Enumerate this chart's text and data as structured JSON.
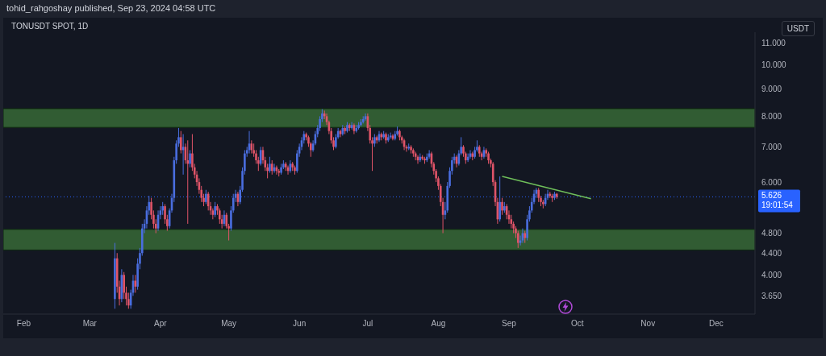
{
  "chart_data": {
    "type": "candlestick",
    "title": "tohid_rahgoshay published, Sep 23, 2024 04:58 UTC",
    "subtitle": "TONUSDT SPOT, 1D",
    "ylabel": "USDT",
    "log": "y",
    "xlim": [
      "2024-01-23",
      "2024-12-18"
    ],
    "xticks": [
      {
        "value": "2024-02-01",
        "label": "Feb"
      },
      {
        "value": "2024-03-01",
        "label": "Mar"
      },
      {
        "value": "2024-04-01",
        "label": "Apr"
      },
      {
        "value": "2024-05-01",
        "label": "May"
      },
      {
        "value": "2024-06-01",
        "label": "Jun"
      },
      {
        "value": "2024-07-01",
        "label": "Jul"
      },
      {
        "value": "2024-08-01",
        "label": "Aug"
      },
      {
        "value": "2024-09-01",
        "label": "Sep"
      },
      {
        "value": "2024-10-01",
        "label": "Oct"
      },
      {
        "value": "2024-11-01",
        "label": "Nov"
      },
      {
        "value": "2024-12-01",
        "label": "Dec"
      }
    ],
    "ylim": [
      3.37,
      11.55
    ],
    "yticks": [
      {
        "value": 3.65,
        "label": "3.650"
      },
      {
        "value": 4,
        "label": "4.000"
      },
      {
        "value": 4.4,
        "label": "4.400"
      },
      {
        "value": 4.8,
        "label": "4.800"
      },
      {
        "value": 6,
        "label": "6.000"
      },
      {
        "value": 7,
        "label": "7.000"
      },
      {
        "value": 8,
        "label": "8.000"
      },
      {
        "value": 9,
        "label": "9.000"
      },
      {
        "value": 10,
        "label": "10.000"
      },
      {
        "value": 11,
        "label": "11.000"
      }
    ],
    "x": [
      "2024-03-12",
      "2024-03-13",
      "2024-03-14",
      "2024-03-15",
      "2024-03-16",
      "2024-03-17",
      "2024-03-18",
      "2024-03-19",
      "2024-03-20",
      "2024-03-21",
      "2024-03-22",
      "2024-03-23",
      "2024-03-24",
      "2024-03-25",
      "2024-03-26",
      "2024-03-27",
      "2024-03-28",
      "2024-03-29",
      "2024-03-30",
      "2024-03-31",
      "2024-04-01",
      "2024-04-02",
      "2024-04-03",
      "2024-04-04",
      "2024-04-05",
      "2024-04-06",
      "2024-04-07",
      "2024-04-08",
      "2024-04-09",
      "2024-04-10",
      "2024-04-11",
      "2024-04-12",
      "2024-04-13",
      "2024-04-14",
      "2024-04-15",
      "2024-04-16",
      "2024-04-17",
      "2024-04-18",
      "2024-04-19",
      "2024-04-20",
      "2024-04-21",
      "2024-04-22",
      "2024-04-23",
      "2024-04-24",
      "2024-04-25",
      "2024-04-26",
      "2024-04-27",
      "2024-04-28",
      "2024-04-29",
      "2024-04-30",
      "2024-05-01",
      "2024-05-02",
      "2024-05-03",
      "2024-05-04",
      "2024-05-05",
      "2024-05-06",
      "2024-05-07",
      "2024-05-08",
      "2024-05-09",
      "2024-05-10",
      "2024-05-11",
      "2024-05-12",
      "2024-05-13",
      "2024-05-14",
      "2024-05-15",
      "2024-05-16",
      "2024-05-17",
      "2024-05-18",
      "2024-05-19",
      "2024-05-20",
      "2024-05-21",
      "2024-05-22",
      "2024-05-23",
      "2024-05-24",
      "2024-05-25",
      "2024-05-26",
      "2024-05-27",
      "2024-05-28",
      "2024-05-29",
      "2024-05-30",
      "2024-05-31",
      "2024-06-01",
      "2024-06-02",
      "2024-06-03",
      "2024-06-04",
      "2024-06-05",
      "2024-06-06",
      "2024-06-07",
      "2024-06-08",
      "2024-06-09",
      "2024-06-10",
      "2024-06-11",
      "2024-06-12",
      "2024-06-13",
      "2024-06-14",
      "2024-06-15",
      "2024-06-16",
      "2024-06-17",
      "2024-06-18",
      "2024-06-19",
      "2024-06-20",
      "2024-06-21",
      "2024-06-22",
      "2024-06-23",
      "2024-06-24",
      "2024-06-25",
      "2024-06-26",
      "2024-06-27",
      "2024-06-28",
      "2024-06-29",
      "2024-06-30",
      "2024-07-01",
      "2024-07-02",
      "2024-07-03",
      "2024-07-04",
      "2024-07-05",
      "2024-07-06",
      "2024-07-07",
      "2024-07-08",
      "2024-07-09",
      "2024-07-10",
      "2024-07-11",
      "2024-07-12",
      "2024-07-13",
      "2024-07-14",
      "2024-07-15",
      "2024-07-16",
      "2024-07-17",
      "2024-07-18",
      "2024-07-19",
      "2024-07-20",
      "2024-07-21",
      "2024-07-22",
      "2024-07-23",
      "2024-07-24",
      "2024-07-25",
      "2024-07-26",
      "2024-07-27",
      "2024-07-28",
      "2024-07-29",
      "2024-07-30",
      "2024-07-31",
      "2024-08-01",
      "2024-08-02",
      "2024-08-03",
      "2024-08-04",
      "2024-08-05",
      "2024-08-06",
      "2024-08-07",
      "2024-08-08",
      "2024-08-09",
      "2024-08-10",
      "2024-08-11",
      "2024-08-12",
      "2024-08-13",
      "2024-08-14",
      "2024-08-15",
      "2024-08-16",
      "2024-08-17",
      "2024-08-18",
      "2024-08-19",
      "2024-08-20",
      "2024-08-21",
      "2024-08-22",
      "2024-08-23",
      "2024-08-24",
      "2024-08-25",
      "2024-08-26",
      "2024-08-27",
      "2024-08-28",
      "2024-08-29",
      "2024-08-30",
      "2024-08-31",
      "2024-09-01",
      "2024-09-02",
      "2024-09-03",
      "2024-09-04",
      "2024-09-05",
      "2024-09-06",
      "2024-09-07",
      "2024-09-08",
      "2024-09-09",
      "2024-09-10",
      "2024-09-11",
      "2024-09-12",
      "2024-09-13",
      "2024-09-14",
      "2024-09-15",
      "2024-09-16",
      "2024-09-17",
      "2024-09-18",
      "2024-09-19",
      "2024-09-20",
      "2024-09-21",
      "2024-09-22"
    ],
    "ohlc": [
      [
        3.6,
        4.6,
        3.45,
        4.3
      ],
      [
        4.3,
        4.4,
        3.7,
        3.8
      ],
      [
        3.8,
        3.9,
        3.5,
        3.6
      ],
      [
        3.6,
        4.1,
        3.55,
        4.0
      ],
      [
        4.0,
        4.05,
        3.6,
        3.7
      ],
      [
        3.7,
        3.8,
        3.5,
        3.6
      ],
      [
        3.6,
        3.7,
        3.45,
        3.5
      ],
      [
        3.5,
        3.75,
        3.45,
        3.7
      ],
      [
        3.7,
        4.0,
        3.65,
        3.9
      ],
      [
        3.9,
        4.0,
        3.7,
        3.8
      ],
      [
        3.8,
        4.3,
        3.75,
        4.2
      ],
      [
        4.2,
        4.5,
        4.1,
        4.4
      ],
      [
        4.4,
        5.0,
        4.35,
        4.9
      ],
      [
        4.9,
        5.1,
        4.8,
        5.0
      ],
      [
        5.0,
        5.4,
        4.9,
        5.3
      ],
      [
        5.3,
        5.65,
        5.2,
        5.5
      ],
      [
        5.5,
        5.6,
        5.1,
        5.2
      ],
      [
        5.2,
        5.3,
        4.9,
        5.0
      ],
      [
        5.0,
        5.1,
        4.8,
        4.9
      ],
      [
        4.9,
        5.3,
        4.85,
        5.2
      ],
      [
        5.2,
        5.4,
        5.1,
        5.3
      ],
      [
        5.3,
        5.5,
        5.2,
        5.4
      ],
      [
        5.4,
        5.45,
        5.0,
        5.1
      ],
      [
        5.1,
        5.2,
        4.85,
        4.95
      ],
      [
        4.95,
        5.35,
        4.9,
        5.3
      ],
      [
        5.3,
        5.7,
        5.25,
        5.6
      ],
      [
        5.6,
        6.7,
        5.5,
        6.6
      ],
      [
        6.6,
        7.2,
        6.5,
        7.1
      ],
      [
        7.1,
        7.6,
        7.0,
        7.3
      ],
      [
        7.3,
        7.5,
        6.8,
        6.9
      ],
      [
        6.9,
        7.4,
        6.2,
        7.0
      ],
      [
        7.0,
        7.1,
        6.5,
        6.6
      ],
      [
        6.6,
        7.2,
        5.0,
        6.5
      ],
      [
        6.5,
        6.9,
        6.4,
        6.8
      ],
      [
        6.8,
        7.4,
        6.3,
        6.4
      ],
      [
        6.4,
        6.5,
        6.1,
        6.2
      ],
      [
        6.2,
        6.3,
        5.9,
        6.0
      ],
      [
        6.0,
        6.1,
        5.7,
        5.8
      ],
      [
        5.8,
        5.9,
        5.5,
        5.6
      ],
      [
        5.6,
        5.7,
        5.4,
        5.5
      ],
      [
        5.5,
        5.8,
        5.45,
        5.7
      ],
      [
        5.7,
        5.75,
        5.3,
        5.4
      ],
      [
        5.4,
        5.5,
        5.2,
        5.3
      ],
      [
        5.3,
        5.35,
        5.1,
        5.2
      ],
      [
        5.2,
        5.5,
        5.15,
        5.4
      ],
      [
        5.4,
        5.45,
        5.2,
        5.3
      ],
      [
        5.3,
        5.35,
        5.0,
        5.1
      ],
      [
        5.1,
        5.2,
        4.9,
        5.0
      ],
      [
        5.0,
        5.3,
        4.95,
        5.2
      ],
      [
        5.2,
        5.25,
        4.9,
        4.95
      ],
      [
        4.95,
        5.0,
        4.65,
        4.9
      ],
      [
        4.9,
        5.4,
        4.85,
        5.3
      ],
      [
        5.3,
        5.7,
        5.25,
        5.6
      ],
      [
        5.6,
        5.8,
        5.5,
        5.7
      ],
      [
        5.7,
        5.75,
        5.4,
        5.5
      ],
      [
        5.5,
        5.9,
        5.45,
        5.8
      ],
      [
        5.8,
        6.4,
        5.75,
        6.3
      ],
      [
        6.3,
        6.9,
        6.2,
        6.8
      ],
      [
        6.8,
        7.0,
        6.7,
        6.9
      ],
      [
        6.9,
        7.5,
        6.8,
        7.1
      ],
      [
        7.1,
        7.2,
        6.8,
        6.9
      ],
      [
        6.9,
        7.1,
        6.7,
        6.8
      ],
      [
        6.8,
        6.9,
        6.5,
        6.6
      ],
      [
        6.6,
        6.7,
        6.3,
        6.5
      ],
      [
        6.5,
        7.0,
        6.45,
        6.9
      ],
      [
        6.9,
        7.0,
        6.5,
        6.6
      ],
      [
        6.6,
        6.7,
        6.3,
        6.4
      ],
      [
        6.4,
        6.5,
        6.1,
        6.3
      ],
      [
        6.3,
        6.7,
        6.25,
        6.5
      ],
      [
        6.5,
        6.6,
        6.2,
        6.3
      ],
      [
        6.3,
        6.5,
        6.25,
        6.4
      ],
      [
        6.4,
        6.45,
        6.2,
        6.3
      ],
      [
        6.3,
        6.35,
        6.15,
        6.25
      ],
      [
        6.25,
        6.5,
        6.2,
        6.4
      ],
      [
        6.4,
        6.6,
        6.35,
        6.5
      ],
      [
        6.5,
        6.55,
        6.3,
        6.4
      ],
      [
        6.4,
        6.45,
        6.2,
        6.3
      ],
      [
        6.3,
        6.6,
        6.25,
        6.5
      ],
      [
        6.5,
        6.55,
        6.3,
        6.4
      ],
      [
        6.4,
        6.45,
        6.2,
        6.3
      ],
      [
        6.3,
        6.9,
        6.25,
        6.8
      ],
      [
        6.8,
        7.1,
        6.7,
        7.0
      ],
      [
        7.0,
        7.3,
        6.9,
        7.2
      ],
      [
        7.2,
        7.5,
        7.1,
        7.4
      ],
      [
        7.4,
        7.45,
        7.2,
        7.3
      ],
      [
        7.3,
        7.35,
        7.0,
        7.1
      ],
      [
        7.1,
        7.15,
        6.7,
        6.9
      ],
      [
        6.9,
        7.2,
        6.85,
        7.1
      ],
      [
        7.1,
        7.5,
        7.05,
        7.4
      ],
      [
        7.4,
        7.7,
        7.3,
        7.6
      ],
      [
        7.6,
        8.0,
        7.5,
        7.9
      ],
      [
        7.9,
        8.25,
        7.8,
        8.1
      ],
      [
        8.1,
        8.2,
        7.9,
        8.0
      ],
      [
        8.0,
        8.1,
        7.7,
        7.8
      ],
      [
        7.8,
        7.85,
        7.4,
        7.5
      ],
      [
        7.5,
        7.6,
        7.1,
        7.2
      ],
      [
        7.2,
        7.3,
        6.9,
        7.0
      ],
      [
        7.0,
        7.4,
        6.95,
        7.3
      ],
      [
        7.3,
        7.6,
        7.25,
        7.5
      ],
      [
        7.5,
        7.55,
        7.3,
        7.4
      ],
      [
        7.4,
        7.7,
        7.35,
        7.6
      ],
      [
        7.6,
        7.65,
        7.4,
        7.5
      ],
      [
        7.5,
        7.8,
        7.45,
        7.7
      ],
      [
        7.7,
        7.75,
        7.5,
        7.6
      ],
      [
        7.6,
        7.8,
        7.55,
        7.7
      ],
      [
        7.7,
        7.75,
        7.4,
        7.5
      ],
      [
        7.5,
        7.7,
        7.45,
        7.6
      ],
      [
        7.6,
        7.8,
        7.55,
        7.7
      ],
      [
        7.7,
        7.9,
        7.65,
        7.8
      ],
      [
        7.8,
        8.0,
        7.75,
        7.9
      ],
      [
        7.9,
        8.1,
        7.85,
        8.0
      ],
      [
        8.0,
        8.1,
        7.5,
        7.6
      ],
      [
        7.6,
        7.7,
        7.1,
        7.2
      ],
      [
        7.2,
        7.3,
        6.3,
        7.1
      ],
      [
        7.1,
        7.4,
        7.0,
        7.3
      ],
      [
        7.3,
        7.35,
        7.1,
        7.2
      ],
      [
        7.2,
        7.5,
        7.15,
        7.4
      ],
      [
        7.4,
        7.45,
        7.2,
        7.3
      ],
      [
        7.3,
        7.5,
        7.25,
        7.4
      ],
      [
        7.4,
        7.45,
        7.1,
        7.2
      ],
      [
        7.2,
        7.4,
        7.15,
        7.3
      ],
      [
        7.3,
        7.45,
        7.25,
        7.35
      ],
      [
        7.35,
        7.4,
        7.2,
        7.25
      ],
      [
        7.25,
        7.5,
        7.2,
        7.4
      ],
      [
        7.4,
        7.65,
        7.35,
        7.5
      ],
      [
        7.5,
        7.55,
        7.2,
        7.3
      ],
      [
        7.3,
        7.35,
        7.1,
        7.2
      ],
      [
        7.2,
        7.25,
        6.9,
        7.0
      ],
      [
        7.0,
        7.05,
        6.85,
        6.95
      ],
      [
        6.95,
        7.1,
        6.9,
        7.0
      ],
      [
        7.0,
        7.05,
        6.8,
        6.9
      ],
      [
        6.9,
        6.95,
        6.7,
        6.8
      ],
      [
        6.8,
        6.85,
        6.6,
        6.7
      ],
      [
        6.7,
        6.75,
        6.5,
        6.6
      ],
      [
        6.6,
        6.8,
        6.55,
        6.7
      ],
      [
        6.7,
        6.75,
        6.6,
        6.65
      ],
      [
        6.65,
        6.7,
        6.5,
        6.6
      ],
      [
        6.6,
        6.8,
        6.55,
        6.7
      ],
      [
        6.7,
        6.9,
        6.65,
        6.8
      ],
      [
        6.8,
        6.85,
        6.4,
        6.5
      ],
      [
        6.5,
        6.55,
        6.2,
        6.3
      ],
      [
        6.3,
        6.35,
        6.0,
        6.1
      ],
      [
        6.1,
        6.15,
        5.8,
        5.9
      ],
      [
        5.9,
        5.95,
        5.4,
        5.5
      ],
      [
        5.5,
        5.6,
        4.8,
        5.2
      ],
      [
        5.2,
        5.5,
        5.1,
        5.3
      ],
      [
        5.3,
        6.0,
        5.25,
        5.9
      ],
      [
        5.9,
        6.4,
        5.85,
        6.3
      ],
      [
        6.3,
        6.7,
        6.2,
        6.6
      ],
      [
        6.6,
        6.8,
        6.5,
        6.7
      ],
      [
        6.7,
        6.75,
        6.4,
        6.5
      ],
      [
        6.5,
        6.9,
        6.45,
        6.8
      ],
      [
        6.8,
        7.3,
        6.75,
        7.0
      ],
      [
        7.0,
        7.05,
        6.7,
        6.8
      ],
      [
        6.8,
        6.85,
        6.5,
        6.6
      ],
      [
        6.6,
        6.8,
        6.55,
        6.7
      ],
      [
        6.7,
        6.9,
        6.65,
        6.8
      ],
      [
        6.8,
        6.85,
        6.6,
        6.7
      ],
      [
        6.7,
        7.0,
        6.65,
        6.9
      ],
      [
        6.9,
        7.2,
        6.85,
        7.0
      ],
      [
        7.0,
        7.05,
        6.7,
        6.8
      ],
      [
        6.8,
        6.85,
        6.6,
        6.7
      ],
      [
        6.7,
        7.0,
        6.65,
        6.9
      ],
      [
        6.9,
        6.95,
        6.7,
        6.8
      ],
      [
        6.8,
        6.85,
        6.5,
        6.6
      ],
      [
        6.6,
        6.65,
        6.4,
        6.5
      ],
      [
        6.5,
        6.55,
        5.9,
        6.0
      ],
      [
        6.0,
        6.05,
        5.4,
        5.5
      ],
      [
        5.5,
        5.6,
        5.0,
        5.1
      ],
      [
        5.1,
        6.15,
        5.05,
        5.5
      ],
      [
        5.5,
        5.6,
        5.2,
        5.3
      ],
      [
        5.3,
        5.5,
        5.25,
        5.4
      ],
      [
        5.4,
        5.45,
        5.1,
        5.2
      ],
      [
        5.2,
        5.3,
        5.0,
        5.1
      ],
      [
        5.1,
        5.2,
        4.9,
        5.0
      ],
      [
        5.0,
        5.05,
        4.8,
        4.9
      ],
      [
        4.9,
        4.95,
        4.7,
        4.8
      ],
      [
        4.8,
        4.85,
        4.5,
        4.6
      ],
      [
        4.6,
        4.75,
        4.55,
        4.65
      ],
      [
        4.65,
        4.9,
        4.6,
        4.8
      ],
      [
        4.8,
        4.85,
        4.6,
        4.7
      ],
      [
        4.7,
        5.2,
        4.65,
        5.1
      ],
      [
        5.1,
        5.4,
        5.05,
        5.3
      ],
      [
        5.3,
        5.6,
        5.25,
        5.5
      ],
      [
        5.5,
        5.8,
        5.45,
        5.7
      ],
      [
        5.7,
        5.85,
        5.6,
        5.8
      ],
      [
        5.8,
        5.85,
        5.5,
        5.6
      ],
      [
        5.6,
        5.65,
        5.4,
        5.5
      ],
      [
        5.5,
        5.55,
        5.35,
        5.45
      ],
      [
        5.45,
        5.7,
        5.4,
        5.6
      ],
      [
        5.6,
        5.8,
        5.55,
        5.7
      ],
      [
        5.7,
        5.75,
        5.6,
        5.65
      ],
      [
        5.65,
        5.7,
        5.5,
        5.6
      ],
      [
        5.6,
        5.75,
        5.55,
        5.7
      ],
      [
        5.7,
        5.72,
        5.58,
        5.626
      ]
    ],
    "colors": [
      "#4a6ee0",
      "#e05468",
      "#e05468",
      "#4a6ee0",
      "#e05468",
      "#e05468",
      "#e05468",
      "#4a6ee0",
      "#4a6ee0",
      "#e05468",
      "#4a6ee0",
      "#4a6ee0",
      "#4a6ee0",
      "#4a6ee0",
      "#4a6ee0",
      "#4a6ee0",
      "#e05468",
      "#e05468",
      "#e05468",
      "#4a6ee0",
      "#4a6ee0",
      "#4a6ee0",
      "#e05468",
      "#e05468",
      "#4a6ee0",
      "#4a6ee0",
      "#4a6ee0",
      "#4a6ee0",
      "#4a6ee0",
      "#e05468",
      "#4a6ee0",
      "#e05468",
      "#e05468",
      "#4a6ee0",
      "#e05468",
      "#e05468",
      "#e05468",
      "#e05468",
      "#e05468",
      "#e05468",
      "#4a6ee0",
      "#e05468",
      "#e05468",
      "#e05468",
      "#4a6ee0",
      "#e05468",
      "#e05468",
      "#e05468",
      "#4a6ee0",
      "#e05468",
      "#e05468",
      "#4a6ee0",
      "#4a6ee0",
      "#4a6ee0",
      "#e05468",
      "#4a6ee0",
      "#4a6ee0",
      "#4a6ee0",
      "#4a6ee0",
      "#4a6ee0",
      "#e05468",
      "#e05468",
      "#e05468",
      "#e05468",
      "#4a6ee0",
      "#e05468",
      "#e05468",
      "#e05468",
      "#4a6ee0",
      "#e05468",
      "#4a6ee0",
      "#e05468",
      "#e05468",
      "#4a6ee0",
      "#4a6ee0",
      "#e05468",
      "#e05468",
      "#4a6ee0",
      "#e05468",
      "#e05468",
      "#4a6ee0",
      "#4a6ee0",
      "#4a6ee0",
      "#4a6ee0",
      "#e05468",
      "#e05468",
      "#e05468",
      "#4a6ee0",
      "#4a6ee0",
      "#4a6ee0",
      "#4a6ee0",
      "#4a6ee0",
      "#e05468",
      "#e05468",
      "#e05468",
      "#e05468",
      "#e05468",
      "#4a6ee0",
      "#4a6ee0",
      "#e05468",
      "#4a6ee0",
      "#e05468",
      "#4a6ee0",
      "#e05468",
      "#4a6ee0",
      "#e05468",
      "#4a6ee0",
      "#4a6ee0",
      "#4a6ee0",
      "#4a6ee0",
      "#4a6ee0",
      "#e05468",
      "#e05468",
      "#e05468",
      "#4a6ee0",
      "#e05468",
      "#4a6ee0",
      "#e05468",
      "#4a6ee0",
      "#e05468",
      "#4a6ee0",
      "#4a6ee0",
      "#e05468",
      "#4a6ee0",
      "#4a6ee0",
      "#e05468",
      "#e05468",
      "#e05468",
      "#e05468",
      "#4a6ee0",
      "#e05468",
      "#e05468",
      "#e05468",
      "#e05468",
      "#4a6ee0",
      "#e05468",
      "#e05468",
      "#4a6ee0",
      "#4a6ee0",
      "#e05468",
      "#e05468",
      "#e05468",
      "#e05468",
      "#e05468",
      "#e05468",
      "#4a6ee0",
      "#4a6ee0",
      "#4a6ee0",
      "#4a6ee0",
      "#4a6ee0",
      "#e05468",
      "#4a6ee0",
      "#4a6ee0",
      "#e05468",
      "#e05468",
      "#4a6ee0",
      "#4a6ee0",
      "#e05468",
      "#4a6ee0",
      "#4a6ee0",
      "#e05468",
      "#e05468",
      "#4a6ee0",
      "#e05468",
      "#e05468",
      "#e05468",
      "#e05468",
      "#e05468",
      "#e05468",
      "#4a6ee0",
      "#e05468",
      "#4a6ee0",
      "#e05468",
      "#e05468",
      "#e05468",
      "#e05468",
      "#e05468",
      "#e05468",
      "#4a6ee0",
      "#4a6ee0",
      "#e05468",
      "#4a6ee0",
      "#4a6ee0",
      "#4a6ee0",
      "#4a6ee0",
      "#4a6ee0",
      "#e05468",
      "#e05468",
      "#e05468",
      "#4a6ee0",
      "#4a6ee0",
      "#e05468",
      "#e05468",
      "#4a6ee0",
      "#e05468"
    ],
    "series": [
      {
        "type": "line",
        "x": [
          "2024-08-29",
          "2024-10-07"
        ],
        "values": [
          6.15,
          5.58
        ],
        "color": "#6fbf5a"
      }
    ],
    "bands": [
      {
        "axis": "y",
        "from": 7.62,
        "to": 8.27,
        "color": "#3e7a3a"
      },
      {
        "axis": "y",
        "from": 4.46,
        "to": 4.88,
        "color": "#3e7a3a"
      }
    ],
    "ref_lines": [
      {
        "axis": "y",
        "value": 5.626,
        "label": "5.626",
        "color": "#2962ff",
        "line_style": "dotted"
      }
    ],
    "annotations": [
      "19:01:54"
    ]
  }
}
